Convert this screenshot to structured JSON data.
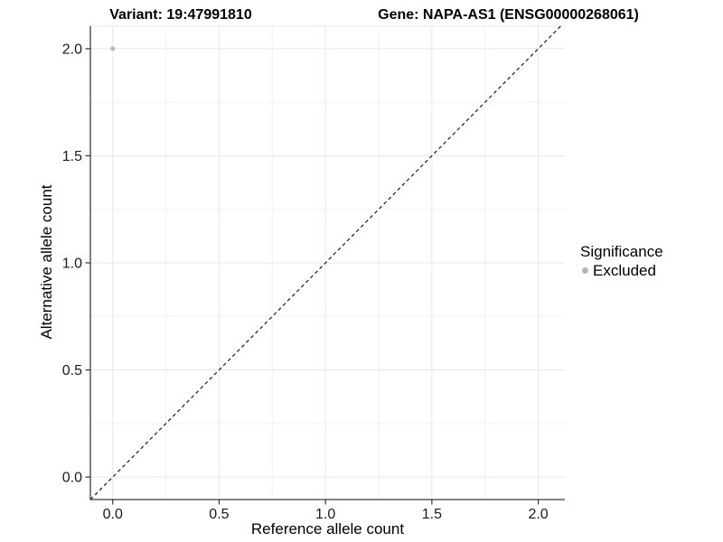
{
  "titles": {
    "variant": "Variant: 19:47991810",
    "gene": "Gene: NAPA-AS1 (ENSG00000268061)"
  },
  "chart_data": {
    "type": "scatter",
    "title_left": "Variant: 19:47991810",
    "title_right": "Gene: NAPA-AS1 (ENSG00000268061)",
    "xlabel": "Reference allele count",
    "ylabel": "Alternative allele count",
    "xlim": [
      -0.105,
      2.125
    ],
    "ylim": [
      -0.105,
      2.105
    ],
    "xticks": [
      0.0,
      0.5,
      1.0,
      1.5,
      2.0
    ],
    "yticks": [
      0.0,
      0.5,
      1.0,
      1.5,
      2.0
    ],
    "xticks_minor": [
      0.25,
      0.75,
      1.25,
      1.75
    ],
    "yticks_minor": [
      0.25,
      0.75,
      1.25,
      1.75
    ],
    "grid": true,
    "legend_position": "right",
    "legend": {
      "title": "Significance",
      "items": [
        {
          "label": "Excluded",
          "color": "#b5b5b5"
        }
      ]
    },
    "series": [
      {
        "name": "Excluded",
        "color": "#b5b5b5",
        "marker_radius": 2.5,
        "points": [
          {
            "x": 0.0,
            "y": 2.0
          }
        ]
      }
    ],
    "reference_line": {
      "equation": "y = x",
      "style": "dashed",
      "color": "#1a1a1a"
    },
    "colors": {
      "grid_major": "#e8e8e8",
      "grid_minor": "#f2f2f2",
      "axis_line": "#3b3b3b",
      "tick_mark": "#333333",
      "tick_label": "#1a1a1a",
      "point": "#b5b5b5"
    }
  }
}
